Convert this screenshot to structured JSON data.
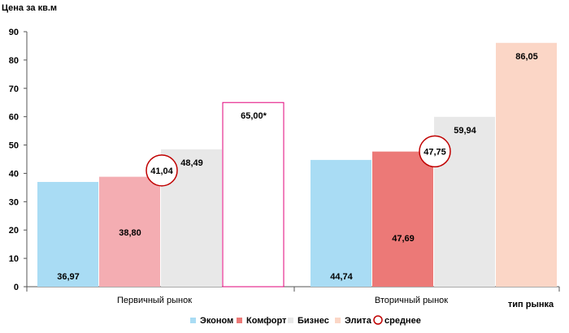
{
  "chart_data": {
    "type": "bar",
    "ylabel": "Цена за кв.м",
    "xlabel": "тип рынка",
    "ylim": [
      0,
      90
    ],
    "yticks": [
      "0",
      "10",
      "20",
      "30",
      "40",
      "50",
      "60",
      "70",
      "80",
      "90"
    ],
    "categories": [
      "Первичный рынок",
      "Вторичный рынок"
    ],
    "series": [
      {
        "name": "Эконом",
        "color": "#a9dcf4",
        "values": [
          36.97,
          44.74
        ],
        "labels": [
          "36,97",
          "44,74"
        ]
      },
      {
        "name": "Комфорт",
        "color": "#f4adb2",
        "color2": "#ec7977",
        "values": [
          38.8,
          47.69
        ],
        "labels": [
          "38,80",
          "47,69"
        ]
      },
      {
        "name": "Бизнес",
        "color": "#e8e8e8",
        "values": [
          48.49,
          59.94
        ],
        "labels": [
          "48,49",
          "59,94"
        ]
      },
      {
        "name": "Элита",
        "color": "#fbd6c6",
        "values": [
          65.0,
          86.05
        ],
        "labels": [
          "65,00*",
          "86,05"
        ],
        "first_outlined_color": "#e2007a"
      }
    ],
    "average": {
      "name": "среднее",
      "color": "#c00000",
      "values": [
        41.04,
        47.75
      ],
      "labels": [
        "41,04",
        "47,75"
      ]
    },
    "legend_position": "bottom",
    "grid": false
  }
}
